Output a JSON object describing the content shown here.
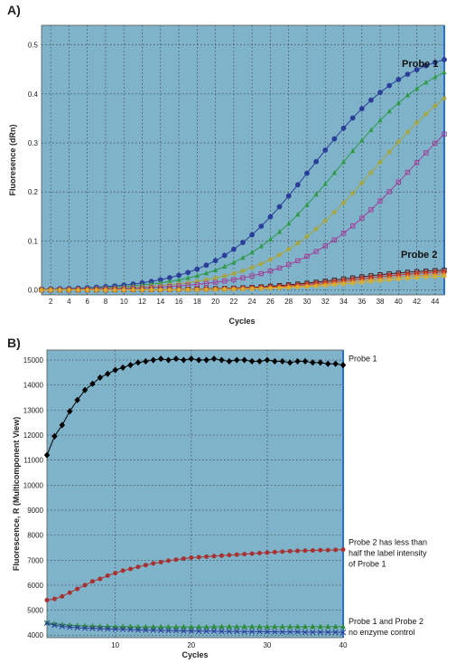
{
  "colors": {
    "plot_bg": "#7fb3c9",
    "grid": "#333333",
    "right_edge": "#2a6fd6",
    "probe1_blue": "#2b3f9a",
    "probe1_green": "#2e9a4a",
    "probe1_olive": "#a9a638",
    "probe1_purple": "#a0409a",
    "probe2_dark": "#4a1a1a",
    "probe2_red": "#c0392b",
    "probe2_orange": "#e08a2a",
    "probe2_gold": "#d8b030",
    "b_probe1": "#000000",
    "b_probe2": "#a83232",
    "b_green": "#2e8b3a",
    "b_blue": "#2b3f9a"
  },
  "chart_data": [
    {
      "panel_label": "A)",
      "type": "line",
      "title": "",
      "xlabel": "Cycles",
      "ylabel": "Fluoresence (dRn)",
      "xlim": [
        1,
        45
      ],
      "ylim": [
        -0.01,
        0.54
      ],
      "x_ticks": [
        2,
        4,
        6,
        8,
        10,
        12,
        14,
        16,
        18,
        20,
        22,
        24,
        26,
        28,
        30,
        32,
        34,
        36,
        38,
        40,
        42,
        44
      ],
      "y_ticks": [
        0.0,
        0.1,
        0.2,
        0.3,
        0.4,
        0.5
      ],
      "y_tick_labels": [
        "0.0",
        "0.1",
        "0.2",
        "0.3",
        "0.4",
        "0.5"
      ],
      "grid": true,
      "annotations": [
        {
          "text": "Probe 1",
          "x": 44,
          "y": 0.51
        },
        {
          "text": "Probe 2",
          "x": 44,
          "y": 0.075
        }
      ],
      "series": [
        {
          "color_key": "probe1_blue",
          "marker": "circle",
          "midpoint": 30.5,
          "max": 0.5,
          "slope": 0.19
        },
        {
          "color_key": "probe1_green",
          "marker": "triangle",
          "midpoint": 33.5,
          "max": 0.5,
          "slope": 0.18
        },
        {
          "color_key": "probe1_olive",
          "marker": "star",
          "midpoint": 37.5,
          "max": 0.5,
          "slope": 0.17
        },
        {
          "color_key": "probe1_purple",
          "marker": "square",
          "midpoint": 41.5,
          "max": 0.5,
          "slope": 0.16
        },
        {
          "color_key": "probe2_dark",
          "marker": "square",
          "midpoint": 34,
          "max": 0.045,
          "slope": 0.2
        },
        {
          "color_key": "probe2_red",
          "marker": "circle",
          "midpoint": 35,
          "max": 0.042,
          "slope": 0.2
        },
        {
          "color_key": "probe2_orange",
          "marker": "triangle",
          "midpoint": 36,
          "max": 0.038,
          "slope": 0.2
        },
        {
          "color_key": "probe2_gold",
          "marker": "star",
          "midpoint": 37,
          "max": 0.034,
          "slope": 0.2
        }
      ]
    },
    {
      "panel_label": "B)",
      "type": "line",
      "title": "",
      "xlabel": "Cycles",
      "ylabel": "Fluorescence, R (Multicomponent View)",
      "xlim": [
        1,
        40
      ],
      "ylim": [
        3900,
        15400
      ],
      "x_ticks": [
        10,
        20,
        30,
        40
      ],
      "y_ticks": [
        4000,
        5000,
        6000,
        7000,
        8000,
        9000,
        10000,
        11000,
        12000,
        13000,
        14000,
        15000
      ],
      "grid": true,
      "annotations": [
        {
          "lines": [
            "Probe 1"
          ],
          "y": 14950
        },
        {
          "lines": [
            "Probe 2 has less than",
            "half the label intensity",
            "of Probe 1"
          ],
          "y": 7600
        },
        {
          "lines": [
            "Probe 1 and Probe 2",
            "no enzyme control"
          ],
          "y": 4450
        }
      ],
      "series": [
        {
          "color_key": "b_probe1",
          "marker": "diamond",
          "x_start": 1,
          "values": [
            11200,
            11950,
            12400,
            12950,
            13400,
            13800,
            14050,
            14300,
            14450,
            14600,
            14700,
            14800,
            14900,
            14950,
            15000,
            15050,
            15000,
            15050,
            15000,
            15050,
            15000,
            15000,
            15050,
            15000,
            14950,
            15000,
            15000,
            14950,
            14950,
            15000,
            14950,
            14950,
            14900,
            14950,
            14950,
            14900,
            14900,
            14850,
            14850,
            14800
          ]
        },
        {
          "color_key": "b_probe2",
          "marker": "circle",
          "x_start": 1,
          "values": [
            5400,
            5450,
            5550,
            5700,
            5850,
            6000,
            6150,
            6250,
            6380,
            6480,
            6580,
            6650,
            6730,
            6800,
            6870,
            6920,
            6980,
            7020,
            7060,
            7100,
            7120,
            7140,
            7160,
            7180,
            7200,
            7220,
            7240,
            7260,
            7280,
            7300,
            7320,
            7340,
            7360,
            7370,
            7380,
            7390,
            7400,
            7400,
            7410,
            7420
          ]
        },
        {
          "color_key": "b_green",
          "marker": "triangle",
          "x_start": 1,
          "values": [
            4500,
            4450,
            4420,
            4400,
            4380,
            4370,
            4360,
            4350,
            4350,
            4340,
            4340,
            4340,
            4330,
            4330,
            4330,
            4330,
            4330,
            4330,
            4330,
            4330,
            4330,
            4330,
            4340,
            4340,
            4340,
            4340,
            4340,
            4340,
            4340,
            4340,
            4340,
            4340,
            4340,
            4340,
            4340,
            4340,
            4340,
            4340,
            4340,
            4340
          ]
        },
        {
          "color_key": "b_blue",
          "marker": "x",
          "x_start": 1,
          "values": [
            4480,
            4400,
            4350,
            4320,
            4300,
            4280,
            4270,
            4260,
            4250,
            4240,
            4230,
            4220,
            4210,
            4200,
            4200,
            4190,
            4180,
            4180,
            4170,
            4170,
            4160,
            4160,
            4160,
            4150,
            4150,
            4150,
            4140,
            4140,
            4140,
            4140,
            4130,
            4130,
            4130,
            4130,
            4120,
            4120,
            4120,
            4120,
            4120,
            4110
          ]
        }
      ]
    }
  ]
}
